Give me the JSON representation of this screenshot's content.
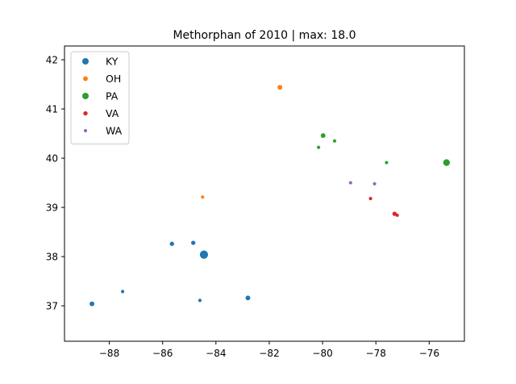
{
  "chart_data": {
    "type": "scatter",
    "title": "Methorphan of 2010 | max: 18.0",
    "xlabel": "",
    "ylabel": "",
    "xlim": [
      -89.68,
      -74.68
    ],
    "ylim": [
      36.28,
      42.28
    ],
    "x_ticks": [
      -88,
      -86,
      -84,
      -82,
      -80,
      -78,
      -76
    ],
    "y_ticks": [
      37,
      38,
      39,
      40,
      41,
      42
    ],
    "grid": false,
    "legend_position": "upper-left",
    "series": [
      {
        "name": "KY",
        "color": "#1f77b4",
        "points": [
          {
            "x": -88.65,
            "y": 37.04,
            "v": 6
          },
          {
            "x": -87.5,
            "y": 37.29,
            "v": 3
          },
          {
            "x": -85.65,
            "y": 38.26,
            "v": 5
          },
          {
            "x": -84.85,
            "y": 38.28,
            "v": 5
          },
          {
            "x": -84.45,
            "y": 38.04,
            "v": 18
          },
          {
            "x": -84.6,
            "y": 37.11,
            "v": 3
          },
          {
            "x": -82.8,
            "y": 37.16,
            "v": 6
          }
        ]
      },
      {
        "name": "OH",
        "color": "#ff7f0e",
        "points": [
          {
            "x": -81.6,
            "y": 41.44,
            "v": 6
          },
          {
            "x": -84.5,
            "y": 39.21,
            "v": 3
          }
        ]
      },
      {
        "name": "PA",
        "color": "#2ca02c",
        "points": [
          {
            "x": -79.98,
            "y": 40.46,
            "v": 6
          },
          {
            "x": -79.55,
            "y": 40.35,
            "v": 3
          },
          {
            "x": -80.15,
            "y": 40.22,
            "v": 3
          },
          {
            "x": -77.6,
            "y": 39.91,
            "v": 3
          },
          {
            "x": -75.35,
            "y": 39.91,
            "v": 12
          }
        ]
      },
      {
        "name": "VA",
        "color": "#d62728",
        "points": [
          {
            "x": -78.2,
            "y": 39.18,
            "v": 3
          },
          {
            "x": -77.3,
            "y": 38.87,
            "v": 5
          },
          {
            "x": -77.2,
            "y": 38.84,
            "v": 3
          }
        ]
      },
      {
        "name": "WA",
        "color": "#9467bd",
        "points": [
          {
            "x": -78.95,
            "y": 39.5,
            "v": 3
          },
          {
            "x": -78.05,
            "y": 39.48,
            "v": 3
          }
        ]
      }
    ]
  }
}
